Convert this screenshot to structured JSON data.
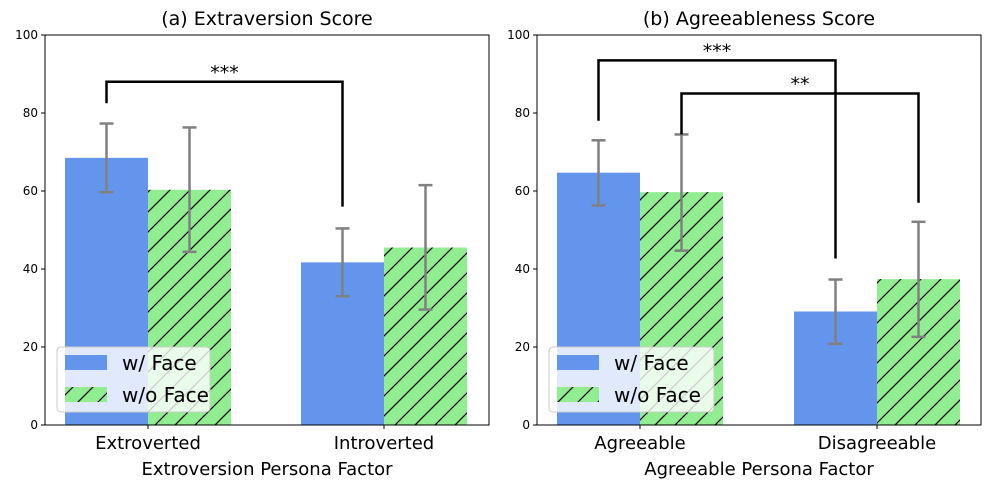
{
  "colors": {
    "w_face": "#6495ED",
    "wo_face": "#90EE90",
    "error_bar": "#808080",
    "bracket": "#000000",
    "hatch": "#000000"
  },
  "chart_data": [
    {
      "type": "bar",
      "title": "(a) Extraversion Score",
      "xlabel": "Extroversion Persona Factor",
      "ylabel": "",
      "ylim": [
        0,
        100
      ],
      "yticks": [
        0,
        20,
        40,
        60,
        80,
        100
      ],
      "categories": [
        "Extroverted",
        "Introverted"
      ],
      "series": [
        {
          "name": "w/ Face",
          "values": [
            68.5,
            41.7
          ],
          "err_low": [
            59.7,
            33.0
          ],
          "err_high": [
            77.3,
            50.4
          ],
          "hatch": false
        },
        {
          "name": "w/o Face",
          "values": [
            60.3,
            45.5
          ],
          "err_low": [
            44.4,
            29.6
          ],
          "err_high": [
            76.3,
            61.5
          ],
          "hatch": true
        }
      ],
      "legend": {
        "position": "lower-left",
        "entries": [
          "w/ Face",
          "w/o Face"
        ]
      },
      "significance": [
        {
          "label": "***",
          "from_category": 0,
          "to_category": 1,
          "from_series": 0,
          "to_series": 0,
          "left_start": 82.5,
          "right_start": 56.0,
          "top": 88.0
        }
      ]
    },
    {
      "type": "bar",
      "title": "(b) Agreeableness Score",
      "xlabel": "Agreeable Persona Factor",
      "ylabel": "",
      "ylim": [
        0,
        100
      ],
      "yticks": [
        0,
        20,
        40,
        60,
        80,
        100
      ],
      "categories": [
        "Agreeable",
        "Disagreeable"
      ],
      "series": [
        {
          "name": "w/ Face",
          "values": [
            64.7,
            29.1
          ],
          "err_low": [
            56.3,
            20.8
          ],
          "err_high": [
            73.0,
            37.3
          ],
          "hatch": false
        },
        {
          "name": "w/o Face",
          "values": [
            59.7,
            37.4
          ],
          "err_low": [
            44.7,
            22.6
          ],
          "err_high": [
            74.5,
            52.1
          ],
          "hatch": true
        }
      ],
      "legend": {
        "position": "lower-left",
        "entries": [
          "w/ Face",
          "w/o Face"
        ]
      },
      "significance": [
        {
          "label": "***",
          "from_category": 0,
          "to_category": 1,
          "from_series": 0,
          "to_series": 0,
          "left_start": 78.0,
          "right_start": 42.7,
          "top": 93.5
        },
        {
          "label": "**",
          "from_category": 0,
          "to_category": 1,
          "from_series": 1,
          "to_series": 1,
          "left_start": 74.5,
          "right_start": 57.0,
          "top": 85.0
        }
      ]
    }
  ]
}
